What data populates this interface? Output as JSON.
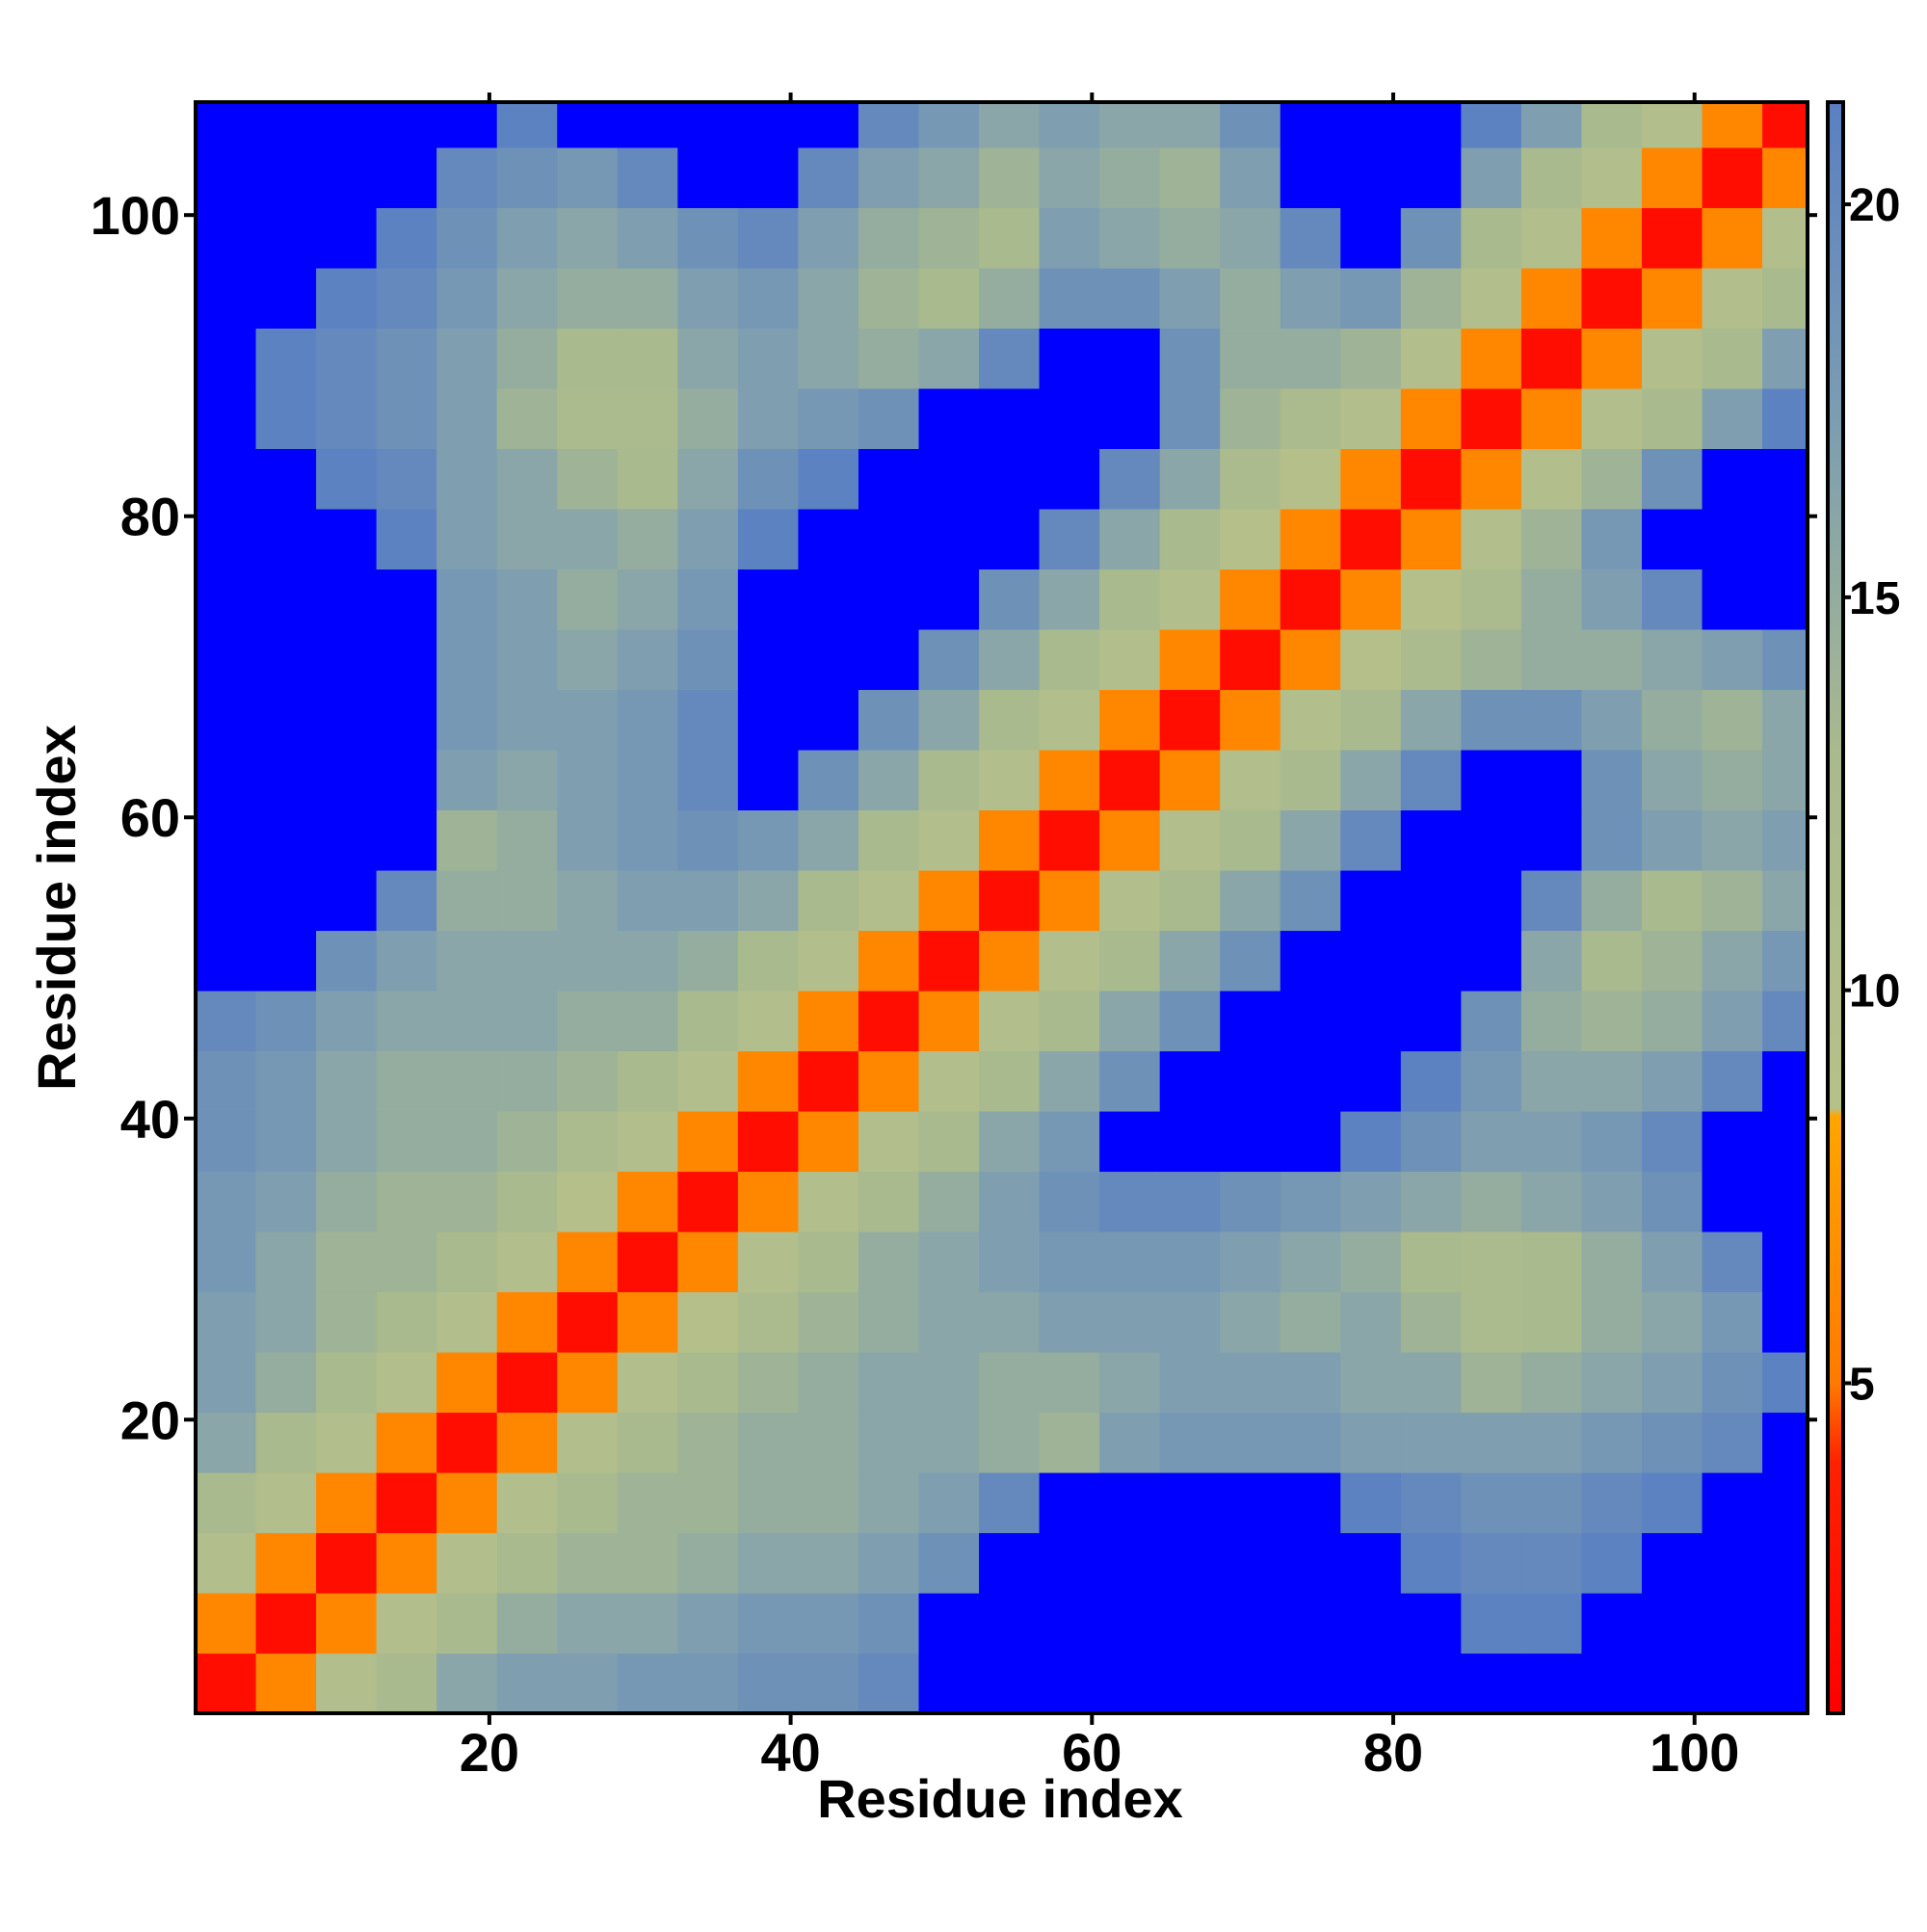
{
  "chart_data": {
    "type": "heatmap",
    "xlabel": "Residue index",
    "ylabel": "Residue index",
    "x": [
      2.5,
      6.5,
      10.5,
      14.5,
      18.5,
      22.5,
      26.5,
      30.5,
      34.5,
      38.5,
      42.5,
      46.5,
      50.5,
      54.5,
      58.5,
      62.5,
      66.5,
      70.5,
      74.5,
      78.5,
      82.5,
      86.5,
      90.5,
      94.5,
      98.5,
      102.5,
      106.5
    ],
    "y": [
      2.5,
      6.5,
      10.5,
      14.5,
      18.5,
      22.5,
      26.5,
      30.5,
      34.5,
      38.5,
      42.5,
      46.5,
      50.5,
      54.5,
      58.5,
      62.5,
      66.5,
      70.5,
      74.5,
      78.5,
      82.5,
      86.5,
      90.5,
      94.5,
      98.5,
      102.5,
      106.5
    ],
    "values": [
      [
        2,
        6,
        10,
        13,
        16,
        17,
        17,
        18,
        18,
        19,
        19,
        20,
        25,
        25,
        25,
        25,
        25,
        25,
        25,
        25,
        25,
        23,
        23,
        25,
        25,
        25,
        25
      ],
      [
        6,
        2,
        6,
        10,
        13,
        15,
        16,
        16,
        17,
        18,
        18,
        19,
        22,
        25,
        25,
        25,
        25,
        25,
        25,
        25,
        25,
        21,
        21,
        22,
        25,
        25,
        25
      ],
      [
        10,
        6,
        2,
        6,
        10,
        13,
        14,
        14,
        15,
        16,
        16,
        17,
        19,
        22,
        25,
        25,
        25,
        25,
        25,
        23,
        21,
        20,
        20,
        21,
        23,
        25,
        25
      ],
      [
        13,
        10,
        6,
        2,
        6,
        10,
        13,
        14,
        14,
        15,
        15,
        16,
        17,
        20,
        22,
        25,
        25,
        25,
        23,
        21,
        20,
        19,
        19,
        20,
        21,
        22,
        25
      ],
      [
        16,
        13,
        10,
        6,
        2,
        6,
        10,
        13,
        14,
        15,
        15,
        16,
        16,
        15,
        14,
        17,
        18,
        18,
        18,
        17,
        17,
        17,
        17,
        18,
        19,
        20,
        22
      ],
      [
        17,
        15,
        13,
        10,
        6,
        2,
        6,
        10,
        13,
        14,
        15,
        16,
        16,
        15,
        15,
        16,
        17,
        17,
        17,
        16,
        16,
        14,
        15,
        16,
        17,
        19,
        21
      ],
      [
        17,
        16,
        14,
        13,
        10,
        6,
        2,
        6,
        9,
        12,
        14,
        15,
        16,
        16,
        17,
        17,
        17,
        16,
        15,
        16,
        14,
        12,
        13,
        15,
        16,
        18,
        22
      ],
      [
        18,
        16,
        14,
        14,
        13,
        10,
        6,
        2,
        6,
        10,
        13,
        15,
        16,
        17,
        18,
        18,
        18,
        17,
        16,
        15,
        13,
        12,
        13,
        15,
        17,
        20,
        23
      ],
      [
        18,
        17,
        15,
        14,
        14,
        13,
        9,
        6,
        2,
        6,
        10,
        13,
        15,
        17,
        19,
        20,
        20,
        19,
        18,
        17,
        16,
        15,
        16,
        17,
        19,
        22,
        25
      ],
      [
        19,
        18,
        16,
        15,
        15,
        14,
        12,
        10,
        6,
        2,
        6,
        10,
        13,
        16,
        18,
        22,
        25,
        25,
        23,
        21,
        19,
        17,
        17,
        18,
        20,
        23,
        25
      ],
      [
        19,
        18,
        16,
        15,
        15,
        15,
        14,
        13,
        10,
        6,
        2,
        6,
        10,
        13,
        16,
        19,
        23,
        25,
        25,
        23,
        21,
        18,
        16,
        16,
        17,
        20,
        24
      ],
      [
        20,
        19,
        17,
        16,
        16,
        16,
        15,
        15,
        13,
        10,
        6,
        2,
        6,
        10,
        13,
        16,
        19,
        22,
        24,
        25,
        23,
        19,
        15,
        14,
        15,
        17,
        20
      ],
      [
        25,
        22,
        19,
        17,
        16,
        16,
        16,
        16,
        15,
        13,
        10,
        6,
        2,
        6,
        10,
        13,
        16,
        19,
        22,
        25,
        25,
        22,
        16,
        13,
        14,
        16,
        18
      ],
      [
        25,
        25,
        22,
        20,
        15,
        15,
        16,
        17,
        17,
        16,
        13,
        10,
        6,
        2,
        6,
        10,
        13,
        16,
        19,
        23,
        25,
        25,
        20,
        15,
        13,
        14,
        16
      ],
      [
        25,
        25,
        25,
        22,
        14,
        15,
        17,
        18,
        19,
        18,
        16,
        13,
        10,
        6,
        2,
        6,
        10,
        13,
        16,
        20,
        24,
        25,
        23,
        19,
        17,
        16,
        17
      ],
      [
        25,
        25,
        25,
        25,
        17,
        16,
        17,
        18,
        20,
        22,
        19,
        16,
        13,
        10,
        6,
        2,
        6,
        10,
        13,
        16,
        20,
        23,
        22,
        19,
        16,
        15,
        16
      ],
      [
        25,
        25,
        25,
        25,
        18,
        17,
        17,
        18,
        20,
        25,
        23,
        19,
        16,
        13,
        10,
        6,
        2,
        6,
        10,
        13,
        16,
        19,
        19,
        17,
        15,
        14,
        16
      ],
      [
        25,
        25,
        25,
        25,
        18,
        17,
        16,
        17,
        19,
        25,
        25,
        22,
        19,
        16,
        13,
        10,
        6,
        2,
        6,
        9,
        12,
        14,
        15,
        15,
        16,
        17,
        19
      ],
      [
        25,
        25,
        25,
        23,
        18,
        17,
        15,
        16,
        18,
        23,
        25,
        24,
        22,
        19,
        16,
        13,
        10,
        6,
        2,
        6,
        9,
        12,
        15,
        17,
        20,
        23,
        25
      ],
      [
        25,
        25,
        23,
        21,
        17,
        16,
        16,
        15,
        17,
        21,
        23,
        25,
        25,
        23,
        20,
        16,
        13,
        9,
        6,
        2,
        6,
        10,
        14,
        18,
        22,
        25,
        25
      ],
      [
        25,
        25,
        21,
        20,
        17,
        16,
        14,
        13,
        16,
        19,
        21,
        23,
        25,
        25,
        24,
        20,
        16,
        12,
        9,
        6,
        2,
        6,
        10,
        14,
        19,
        23,
        25
      ],
      [
        23,
        21,
        20,
        19,
        17,
        14,
        12,
        12,
        15,
        17,
        18,
        19,
        22,
        25,
        25,
        23,
        19,
        14,
        12,
        10,
        6,
        2,
        6,
        10,
        13,
        17,
        21
      ],
      [
        23,
        21,
        20,
        19,
        17,
        15,
        13,
        13,
        16,
        17,
        16,
        15,
        16,
        20,
        23,
        22,
        19,
        15,
        15,
        14,
        10,
        6,
        2,
        6,
        10,
        13,
        17
      ],
      [
        25,
        22,
        21,
        20,
        18,
        16,
        15,
        15,
        17,
        18,
        16,
        14,
        13,
        15,
        19,
        19,
        17,
        15,
        17,
        18,
        14,
        10,
        6,
        2,
        6,
        10,
        13
      ],
      [
        25,
        25,
        23,
        21,
        19,
        17,
        16,
        17,
        19,
        20,
        17,
        15,
        14,
        13,
        17,
        16,
        15,
        16,
        20,
        22,
        19,
        13,
        10,
        6,
        2,
        6,
        10
      ],
      [
        25,
        25,
        25,
        22,
        20,
        19,
        18,
        20,
        22,
        23,
        20,
        17,
        16,
        14,
        16,
        15,
        14,
        17,
        23,
        25,
        23,
        17,
        13,
        10,
        6,
        2,
        6
      ],
      [
        25,
        25,
        25,
        25,
        22,
        21,
        22,
        23,
        25,
        25,
        24,
        20,
        18,
        16,
        17,
        16,
        16,
        19,
        25,
        25,
        25,
        21,
        17,
        13,
        10,
        6,
        2
      ]
    ],
    "xlim": [
      0.5,
      107.5
    ],
    "ylim": [
      0.5,
      107.5
    ],
    "xticks": [
      20,
      40,
      60,
      80,
      100
    ],
    "yticks": [
      20,
      40,
      60,
      80,
      100
    ],
    "clim": [
      0.8,
      21.3
    ],
    "cticks": [
      5,
      10,
      15,
      20
    ],
    "colorscale": [
      [
        0.8,
        "#ff0000"
      ],
      [
        4,
        "#ff2200"
      ],
      [
        5,
        "#ff7a00"
      ],
      [
        8.4,
        "#ffa500"
      ],
      [
        8.5,
        "#b6c08a"
      ],
      [
        13,
        "#a9ba8e"
      ],
      [
        17,
        "#7f9fb0"
      ],
      [
        21.3,
        "#5a80c2"
      ]
    ],
    "over_color": "#0000ff"
  }
}
